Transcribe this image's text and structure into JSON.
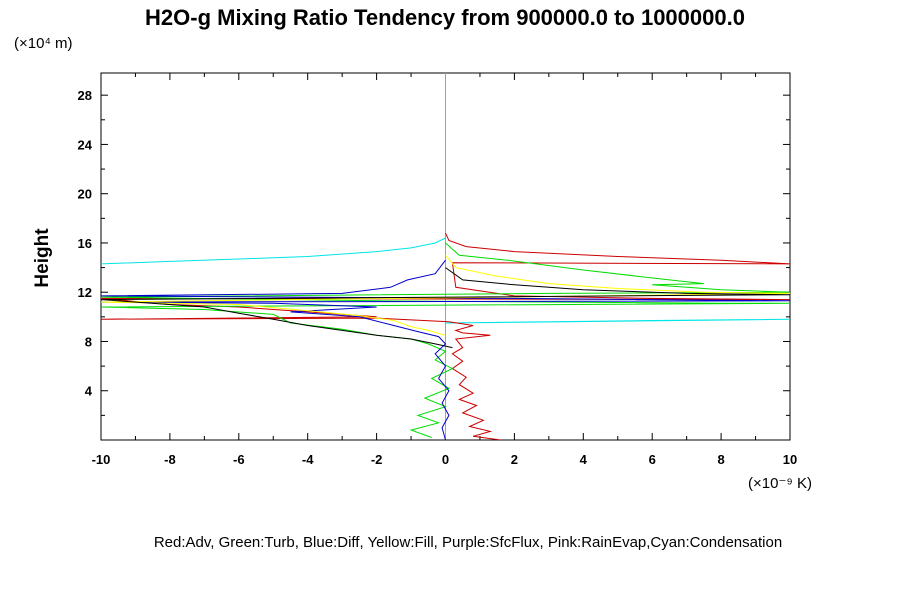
{
  "chart_data": {
    "type": "line",
    "title": "H2O-g Mixing Ratio Tendency from 900000.0 to 1000000.0",
    "ylabel": "Height",
    "y_unit": "(×10⁴ m)",
    "x_unit": "(×10⁻⁹ K)",
    "legend_text": "Red:Adv, Green:Turb, Blue:Diff, Yellow:Fill, Purple:SfcFlux, Pink:RainEvap,Cyan:Condensation",
    "xlim": [
      -10,
      10
    ],
    "ylim": [
      0,
      29.8
    ],
    "x_ticks": [
      -10,
      -8,
      -6,
      -4,
      -2,
      0,
      2,
      4,
      6,
      8,
      10
    ],
    "x_tick_labels": [
      "-10",
      "-8",
      "-6",
      "-4",
      "-2",
      "0",
      "2",
      "4",
      "6",
      "8",
      "10"
    ],
    "y_ticks": [
      4,
      8,
      12,
      16,
      20,
      24,
      28
    ],
    "y_tick_labels": [
      "4",
      "8",
      "12",
      "16",
      "20",
      "24",
      "28"
    ],
    "grid": false,
    "series": [
      {
        "color": "#00e5e5",
        "points": [
          [
            -10,
            14.3
          ],
          [
            -8,
            14.5
          ],
          [
            -6,
            14.7
          ],
          [
            -4,
            14.9
          ],
          [
            -2,
            15.3
          ],
          [
            -1,
            15.6
          ],
          [
            -0.3,
            16.0
          ],
          [
            0,
            16.4
          ],
          [
            0,
            29.8
          ],
          [
            0,
            16.4
          ],
          [
            0,
            12
          ],
          [
            0,
            9.5
          ],
          [
            3,
            9.6
          ],
          [
            6,
            9.7
          ],
          [
            10,
            9.8
          ],
          [
            0,
            9.5
          ],
          [
            0,
            0
          ]
        ]
      },
      {
        "color": "#cc0000",
        "points": [
          [
            0,
            16.8
          ],
          [
            0.1,
            16.2
          ],
          [
            0.6,
            15.7
          ],
          [
            2,
            15.3
          ],
          [
            5,
            14.9
          ],
          [
            8,
            14.6
          ],
          [
            10,
            14.3
          ],
          [
            0.2,
            14.4
          ],
          [
            0.3,
            12.4
          ],
          [
            2,
            11.7
          ],
          [
            6,
            11.5
          ],
          [
            10,
            11.4
          ],
          [
            -10,
            11.5
          ],
          [
            -8,
            11.0
          ],
          [
            -6,
            10.8
          ],
          [
            -4,
            10.4
          ],
          [
            -2,
            10.0
          ],
          [
            -10,
            9.8
          ],
          [
            -2,
            9.9
          ],
          [
            0.1,
            9.6
          ],
          [
            0.8,
            9.3
          ],
          [
            0.3,
            8.9
          ],
          [
            0.5,
            8.7
          ],
          [
            1.3,
            8.5
          ],
          [
            0.3,
            8.2
          ],
          [
            0.5,
            7.5
          ],
          [
            0.2,
            7.0
          ],
          [
            0.5,
            6.4
          ],
          [
            0.2,
            5.8
          ],
          [
            0.6,
            5.1
          ],
          [
            0.4,
            4.5
          ],
          [
            0.8,
            3.8
          ],
          [
            0.4,
            3.3
          ],
          [
            0.9,
            2.8
          ],
          [
            0.5,
            2.2
          ],
          [
            1.1,
            1.6
          ],
          [
            0.7,
            1.1
          ],
          [
            1.3,
            0.7
          ],
          [
            0.8,
            0.3
          ],
          [
            1.6,
            0.0
          ]
        ]
      },
      {
        "color": "#00dd00",
        "points": [
          [
            0,
            16.0
          ],
          [
            0.4,
            15.0
          ],
          [
            1.8,
            14.6
          ],
          [
            4,
            13.8
          ],
          [
            6.5,
            13.0
          ],
          [
            7.5,
            12.7
          ],
          [
            6,
            12.6
          ],
          [
            8,
            12.2
          ],
          [
            10,
            12.0
          ],
          [
            3,
            11.9
          ],
          [
            -10,
            11.6
          ],
          [
            -2,
            11.3
          ],
          [
            8,
            11.1
          ],
          [
            10,
            11.1
          ],
          [
            -10,
            10.8
          ],
          [
            -7,
            10.6
          ],
          [
            -5,
            10.2
          ],
          [
            -4.5,
            9.5
          ],
          [
            -3,
            9.0
          ],
          [
            -2,
            8.5
          ],
          [
            -1,
            8.2
          ],
          [
            -0.5,
            7.8
          ],
          [
            0,
            7.2
          ],
          [
            -0.3,
            6.5
          ],
          [
            0.2,
            5.8
          ],
          [
            -0.4,
            5.0
          ],
          [
            0.1,
            4.2
          ],
          [
            -0.6,
            3.4
          ],
          [
            0,
            2.7
          ],
          [
            -0.8,
            2.0
          ],
          [
            -0.2,
            1.4
          ],
          [
            -1,
            0.8
          ],
          [
            -0.4,
            0.2
          ]
        ]
      },
      {
        "color": "#0000cc",
        "points": [
          [
            0,
            14.6
          ],
          [
            -0.3,
            13.5
          ],
          [
            -1.1,
            13.0
          ],
          [
            -1.6,
            12.4
          ],
          [
            -3,
            11.9
          ],
          [
            -10,
            11.7
          ],
          [
            2,
            11.5
          ],
          [
            10,
            11.3
          ],
          [
            -10,
            11.2
          ],
          [
            -5,
            11.1
          ],
          [
            -2,
            10.8
          ],
          [
            -4.5,
            10.4
          ],
          [
            -2.5,
            10.0
          ],
          [
            -1.5,
            9.3
          ],
          [
            -0.8,
            8.8
          ],
          [
            -0.2,
            8.4
          ],
          [
            0,
            7.8
          ],
          [
            -0.3,
            7.0
          ],
          [
            0,
            6.0
          ],
          [
            -0.2,
            5.0
          ],
          [
            0.1,
            4.0
          ],
          [
            -0.1,
            3.0
          ],
          [
            0.1,
            2.0
          ],
          [
            -0.1,
            1.0
          ],
          [
            0,
            0
          ]
        ]
      },
      {
        "color": "#ffff00",
        "points": [
          [
            0,
            15.0
          ],
          [
            0.3,
            14.0
          ],
          [
            1.5,
            13.3
          ],
          [
            3,
            12.7
          ],
          [
            5,
            12.3
          ],
          [
            7.5,
            12.0
          ],
          [
            10,
            11.9
          ],
          [
            -10,
            11.2
          ],
          [
            -6,
            11.0
          ],
          [
            -4,
            10.5
          ],
          [
            -2.5,
            10.1
          ],
          [
            -1.5,
            9.7
          ],
          [
            -1,
            9.2
          ],
          [
            -0.5,
            8.9
          ],
          [
            0,
            8.5
          ]
        ]
      },
      {
        "color": "#000000",
        "points": [
          [
            0,
            14.0
          ],
          [
            0.5,
            13.0
          ],
          [
            2,
            12.6
          ],
          [
            4,
            12.2
          ],
          [
            7,
            11.9
          ],
          [
            10,
            11.8
          ],
          [
            -10,
            11.4
          ],
          [
            -7,
            10.8
          ],
          [
            -6,
            10.3
          ],
          [
            -5,
            9.8
          ],
          [
            -4,
            9.3
          ],
          [
            -3,
            8.9
          ],
          [
            -2,
            8.5
          ],
          [
            -1,
            8.2
          ],
          [
            -0.3,
            7.8
          ],
          [
            0.2,
            7.5
          ]
        ]
      }
    ]
  }
}
